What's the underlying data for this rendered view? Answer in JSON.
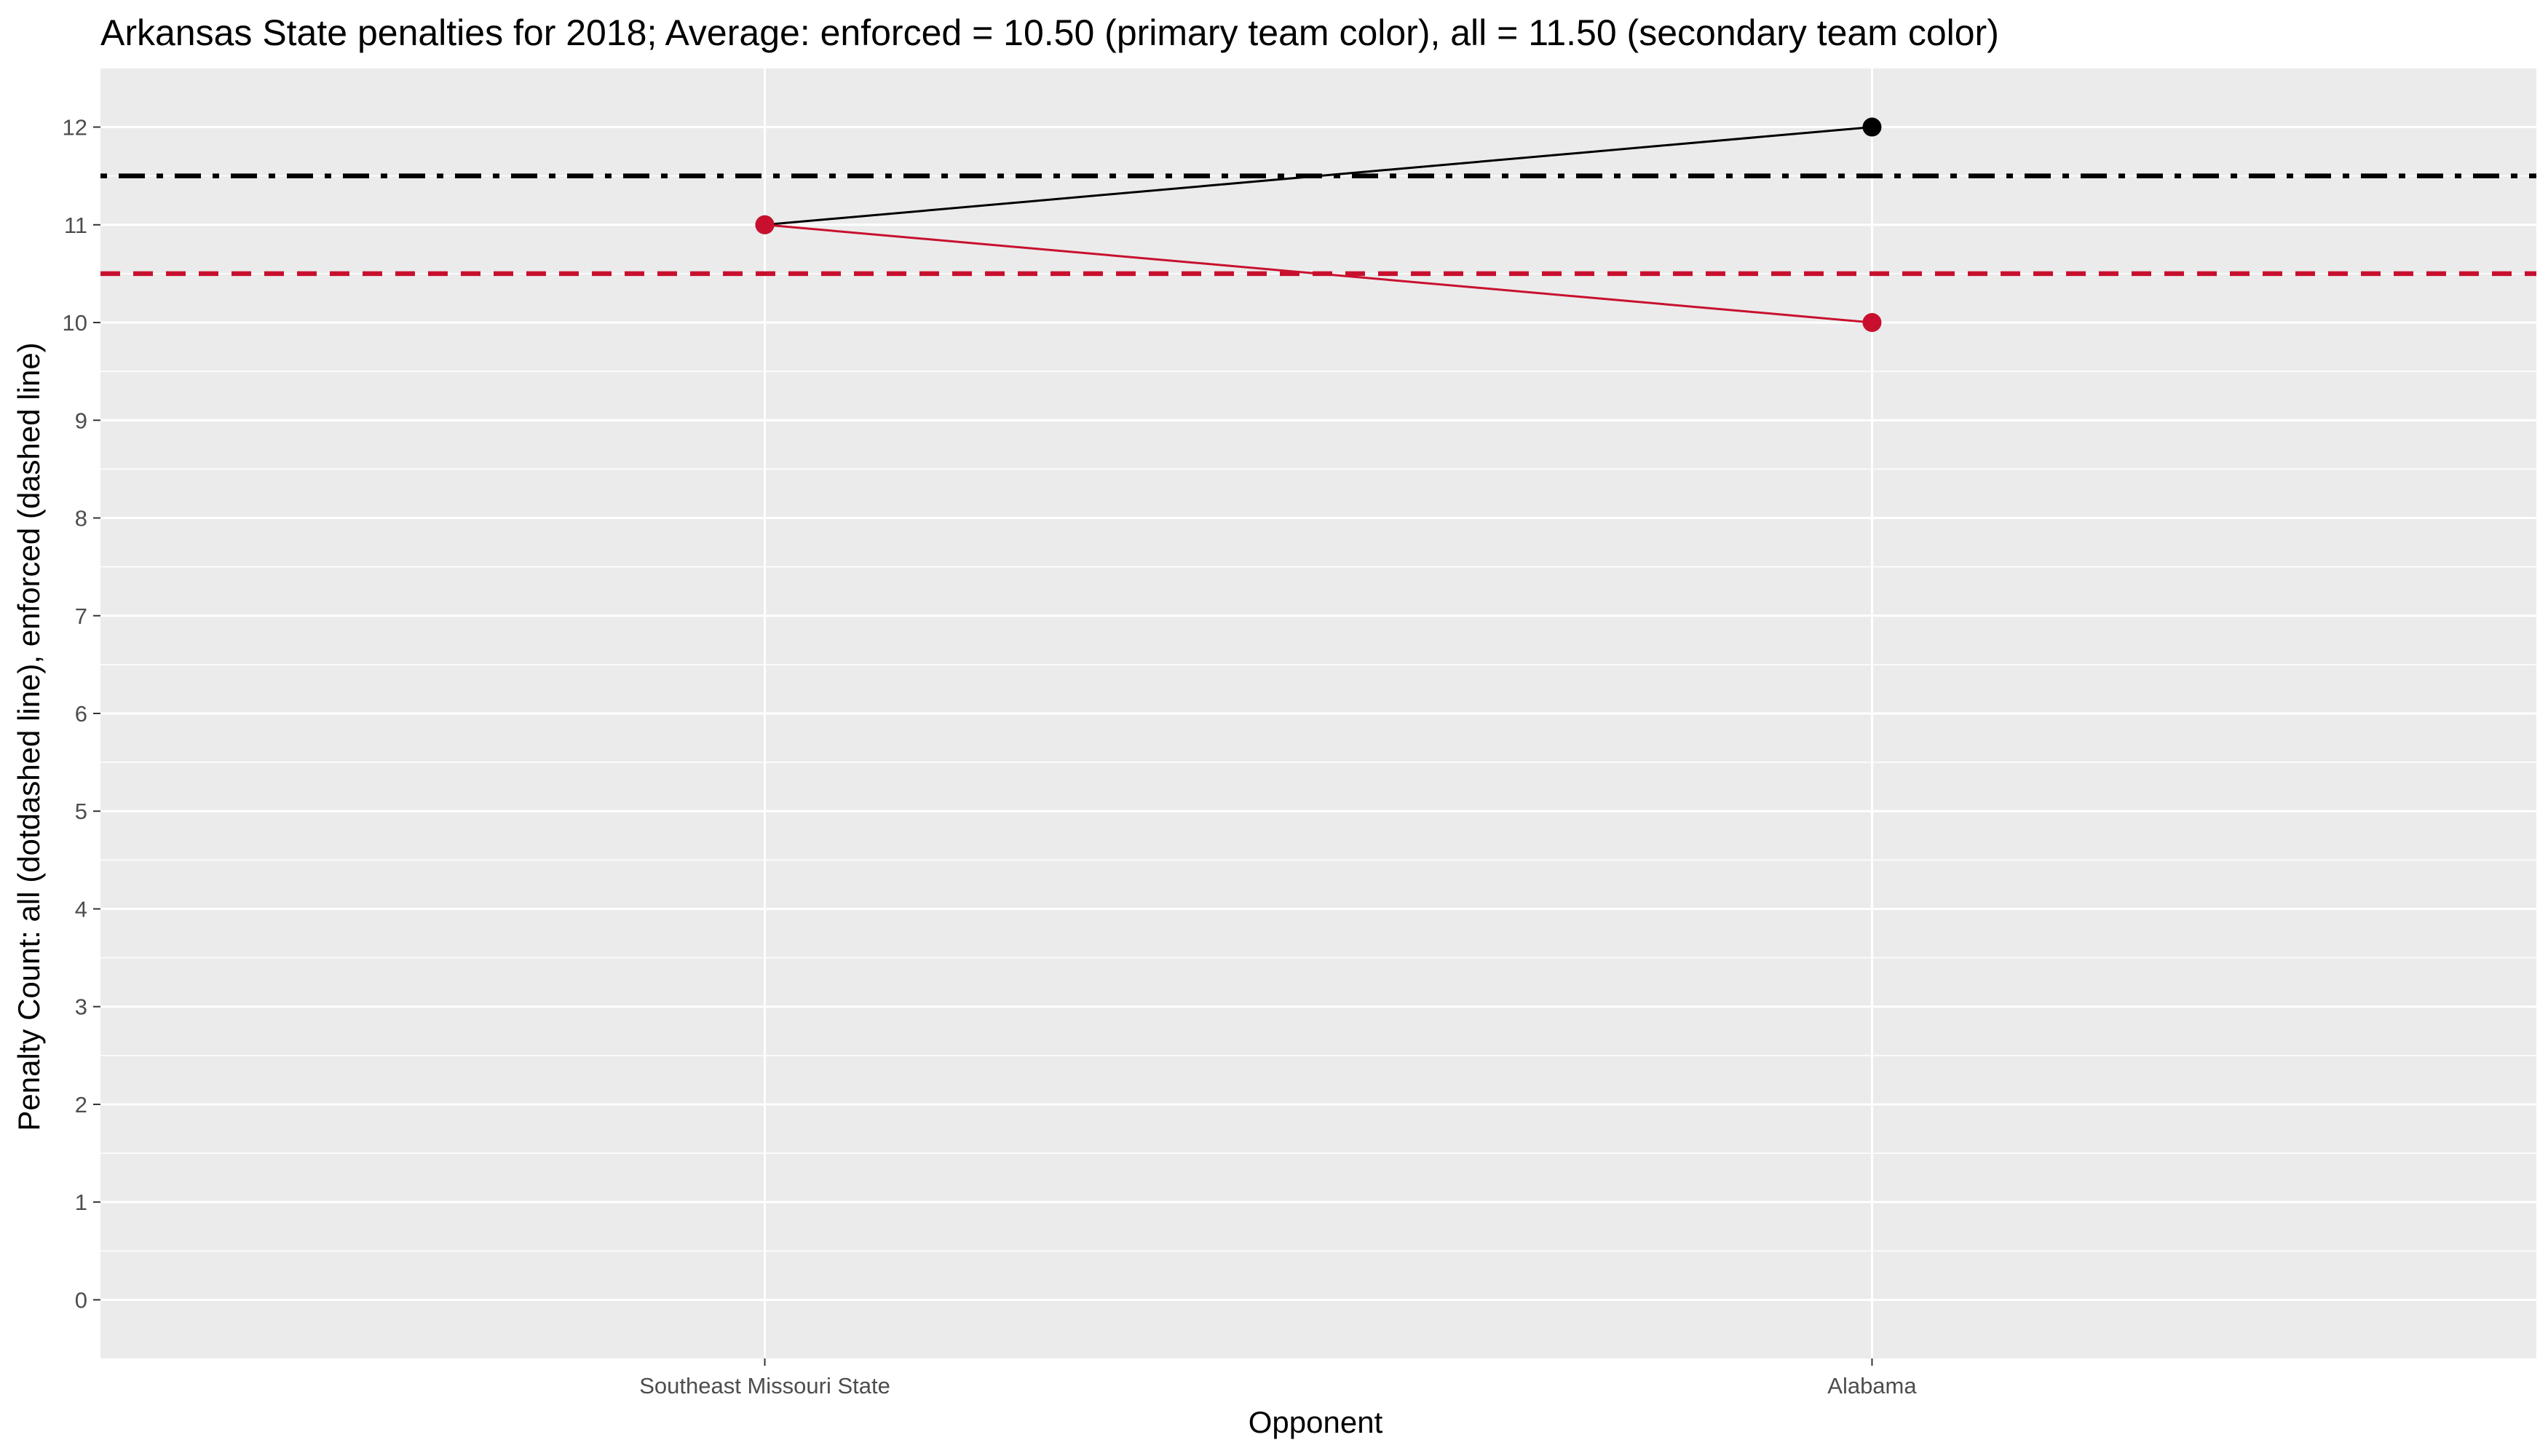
{
  "chart_data": {
    "type": "line",
    "title": "Arkansas State penalties for 2018; Average: enforced = 10.50 (primary team color), all = 11.50 (secondary team color)",
    "xlabel": "Opponent",
    "ylabel": "Penalty Count: all (dotdashed line), enforced (dashed line)",
    "categories": [
      "Southeast Missouri State",
      "Alabama"
    ],
    "ylim": [
      -0.6,
      12.6
    ],
    "yticks": [
      0,
      1,
      2,
      3,
      4,
      5,
      6,
      7,
      8,
      9,
      10,
      11,
      12
    ],
    "grid": true,
    "legend": "none",
    "series": [
      {
        "values": [
          11,
          12
        ],
        "color": "#000000"
      },
      {
        "values": [
          11,
          10
        ],
        "color": "#C8102E"
      }
    ],
    "reference_lines": [
      {
        "value": 11.5,
        "style": "dotdash",
        "color": "#000000"
      },
      {
        "value": 10.5,
        "style": "dashed",
        "color": "#C8102E"
      }
    ],
    "colors": {
      "panel_background": "#EBEBEB",
      "grid": "#FFFFFF",
      "tick_text": "#4D4D4D",
      "tick_mark": "#333333"
    }
  }
}
